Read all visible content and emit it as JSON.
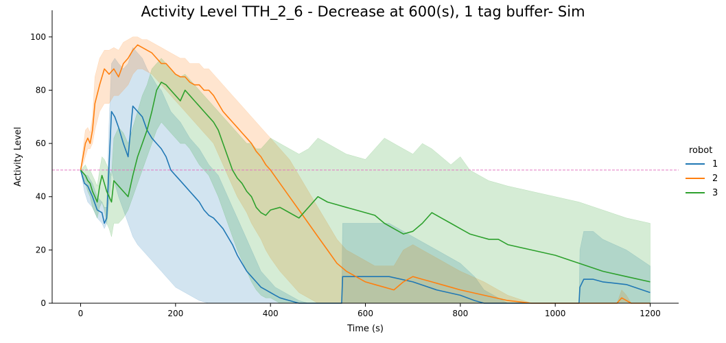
{
  "chart_data": {
    "type": "line",
    "title": "Activity Level TTH_2_6 - Decrease at 600(s), 1 tag buffer- Sim",
    "xlabel": "Time (s)",
    "ylabel": "Activity Level",
    "xlim": [
      -60,
      1260
    ],
    "ylim": [
      0,
      110
    ],
    "xticks": [
      0,
      200,
      400,
      600,
      800,
      1000,
      1200
    ],
    "yticks": [
      0,
      20,
      40,
      60,
      80,
      100
    ],
    "grid": false,
    "legend_title": "robot",
    "legend_position": "right",
    "reference_line": {
      "y": 50,
      "color": "#e377c2",
      "style": "dashed"
    },
    "series": [
      {
        "name": "1",
        "color": "#1f77b4",
        "x": [
          0,
          8,
          15,
          25,
          35,
          45,
          50,
          55,
          60,
          65,
          72,
          80,
          90,
          100,
          110,
          120,
          130,
          140,
          150,
          160,
          170,
          180,
          190,
          200,
          210,
          220,
          230,
          240,
          250,
          260,
          270,
          280,
          290,
          300,
          310,
          320,
          330,
          340,
          350,
          360,
          370,
          380,
          390,
          400,
          410,
          420,
          430,
          440,
          450,
          460,
          470,
          480,
          490,
          500,
          520,
          540,
          550,
          552,
          560,
          600,
          650,
          700,
          750,
          800,
          830,
          850,
          900,
          950,
          1000,
          1050,
          1052,
          1060,
          1080,
          1100,
          1150,
          1200
        ],
        "y": [
          50,
          45,
          44,
          40,
          35,
          34,
          30,
          32,
          52,
          72,
          70,
          66,
          60,
          55,
          74,
          72,
          70,
          65,
          62,
          60,
          58,
          55,
          50,
          48,
          46,
          44,
          42,
          40,
          38,
          35,
          33,
          32,
          30,
          28,
          25,
          22,
          18,
          15,
          12,
          10,
          8,
          6,
          5,
          4,
          3,
          2,
          1.5,
          1,
          0.5,
          0,
          0,
          0,
          0,
          0,
          0,
          0,
          0,
          10,
          10,
          10,
          10,
          8,
          5,
          3,
          1,
          0,
          0,
          0,
          0,
          0,
          6,
          9,
          9,
          8,
          7,
          4
        ],
        "lower": [
          50,
          42,
          38,
          36,
          32,
          30,
          28,
          30,
          38,
          50,
          45,
          40,
          35,
          30,
          25,
          22,
          20,
          18,
          16,
          14,
          12,
          10,
          8,
          6,
          5,
          4,
          3,
          2,
          1,
          0.5,
          0,
          0,
          0,
          0,
          0,
          0,
          0,
          0,
          0,
          0,
          0,
          0,
          0,
          0,
          0,
          0,
          0,
          0,
          0,
          0,
          0,
          0,
          0,
          0,
          0,
          0,
          0,
          0,
          0,
          0,
          0,
          0,
          0,
          0,
          0,
          0,
          0,
          0,
          0,
          0,
          0,
          0,
          0,
          0,
          0,
          0
        ],
        "upper": [
          50,
          48,
          48,
          45,
          40,
          38,
          36,
          36,
          68,
          90,
          92,
          90,
          88,
          90,
          96,
          94,
          92,
          88,
          85,
          82,
          80,
          76,
          72,
          70,
          68,
          65,
          62,
          60,
          58,
          55,
          52,
          50,
          48,
          44,
          40,
          36,
          32,
          28,
          24,
          20,
          16,
          12,
          10,
          8,
          6,
          5,
          4,
          3,
          2,
          1,
          0.5,
          0,
          0,
          0,
          0,
          0,
          0,
          30,
          30,
          30,
          30,
          25,
          20,
          15,
          10,
          5,
          0,
          0,
          0,
          0,
          20,
          27,
          27,
          24,
          20,
          14
        ]
      },
      {
        "name": "2",
        "color": "#ff7f0e",
        "x": [
          0,
          5,
          10,
          15,
          20,
          25,
          30,
          40,
          50,
          60,
          70,
          80,
          90,
          100,
          110,
          120,
          130,
          140,
          150,
          160,
          170,
          180,
          190,
          200,
          210,
          220,
          230,
          240,
          250,
          260,
          270,
          280,
          290,
          300,
          310,
          320,
          330,
          340,
          350,
          360,
          370,
          380,
          390,
          400,
          420,
          440,
          460,
          480,
          500,
          520,
          540,
          560,
          580,
          600,
          620,
          640,
          660,
          680,
          700,
          720,
          740,
          760,
          780,
          800,
          850,
          900,
          950,
          1000,
          1050,
          1100,
          1130,
          1140,
          1150,
          1160,
          1200
        ],
        "y": [
          50,
          55,
          60,
          62,
          60,
          65,
          75,
          82,
          88,
          86,
          88,
          85,
          90,
          92,
          95,
          97,
          96,
          95,
          94,
          92,
          90,
          90,
          88,
          86,
          85,
          85,
          83,
          82,
          82,
          80,
          80,
          78,
          75,
          72,
          70,
          68,
          66,
          64,
          62,
          60,
          57,
          55,
          52,
          50,
          45,
          40,
          35,
          30,
          25,
          20,
          15,
          12,
          10,
          8,
          7,
          6,
          5,
          8,
          10,
          9,
          8,
          7,
          6,
          5,
          3,
          1,
          0,
          0,
          0,
          0,
          0,
          2,
          1,
          0,
          0
        ],
        "lower": [
          50,
          52,
          55,
          58,
          58,
          60,
          65,
          72,
          75,
          75,
          78,
          78,
          80,
          82,
          86,
          88,
          88,
          87,
          86,
          84,
          82,
          80,
          78,
          76,
          74,
          72,
          70,
          68,
          66,
          64,
          62,
          60,
          56,
          52,
          48,
          44,
          40,
          37,
          34,
          30,
          27,
          24,
          20,
          17,
          12,
          8,
          4,
          2,
          0,
          0,
          0,
          0,
          0,
          0,
          0,
          0,
          0,
          0,
          0,
          0,
          0,
          0,
          0,
          0,
          0,
          0,
          0,
          0,
          0,
          0,
          0,
          0,
          0,
          0,
          0
        ],
        "upper": [
          50,
          58,
          65,
          66,
          64,
          70,
          85,
          92,
          95,
          95,
          96,
          95,
          98,
          99,
          100,
          100,
          99,
          99,
          98,
          97,
          96,
          95,
          94,
          93,
          92,
          92,
          90,
          90,
          90,
          88,
          88,
          86,
          84,
          82,
          80,
          78,
          76,
          74,
          72,
          70,
          68,
          66,
          64,
          62,
          58,
          54,
          48,
          42,
          36,
          30,
          24,
          20,
          18,
          16,
          14,
          14,
          14,
          20,
          22,
          20,
          18,
          16,
          14,
          12,
          8,
          3,
          0,
          0,
          0,
          0,
          0,
          5,
          3,
          0,
          0
        ]
      },
      {
        "name": "3",
        "color": "#2ca02c",
        "x": [
          0,
          10,
          15,
          20,
          25,
          30,
          35,
          40,
          45,
          50,
          55,
          60,
          65,
          70,
          80,
          90,
          100,
          110,
          120,
          130,
          140,
          150,
          160,
          170,
          180,
          190,
          200,
          210,
          220,
          230,
          240,
          250,
          260,
          270,
          280,
          290,
          300,
          310,
          320,
          330,
          340,
          350,
          360,
          370,
          380,
          390,
          400,
          420,
          440,
          460,
          480,
          500,
          520,
          540,
          560,
          580,
          600,
          620,
          640,
          660,
          680,
          700,
          720,
          740,
          760,
          780,
          800,
          820,
          840,
          860,
          880,
          900,
          950,
          1000,
          1050,
          1100,
          1150,
          1200
        ],
        "y": [
          50,
          48,
          46,
          45,
          42,
          40,
          38,
          44,
          48,
          45,
          42,
          40,
          38,
          46,
          44,
          42,
          40,
          48,
          55,
          60,
          65,
          72,
          80,
          83,
          82,
          80,
          78,
          76,
          80,
          78,
          76,
          74,
          72,
          70,
          68,
          65,
          60,
          55,
          50,
          47,
          45,
          42,
          40,
          36,
          34,
          33,
          35,
          36,
          34,
          32,
          36,
          40,
          38,
          37,
          36,
          35,
          34,
          33,
          30,
          28,
          26,
          27,
          30,
          34,
          32,
          30,
          28,
          26,
          25,
          24,
          24,
          22,
          20,
          18,
          15,
          12,
          10,
          8
        ],
        "lower": [
          50,
          45,
          42,
          40,
          36,
          34,
          32,
          36,
          38,
          35,
          30,
          28,
          25,
          30,
          30,
          32,
          35,
          40,
          45,
          50,
          55,
          60,
          65,
          68,
          66,
          64,
          62,
          60,
          60,
          58,
          55,
          52,
          50,
          48,
          44,
          40,
          35,
          30,
          25,
          20,
          16,
          12,
          8,
          5,
          3,
          2,
          2,
          0,
          0,
          0,
          0,
          0,
          0,
          0,
          0,
          0,
          0,
          0,
          0,
          0,
          0,
          0,
          0,
          0,
          0,
          0,
          0,
          0,
          0,
          0,
          0,
          0,
          0,
          0,
          0,
          0,
          0,
          0
        ],
        "upper": [
          50,
          52,
          50,
          50,
          48,
          46,
          44,
          50,
          55,
          54,
          52,
          50,
          48,
          62,
          66,
          64,
          60,
          66,
          72,
          78,
          82,
          88,
          90,
          92,
          90,
          88,
          86,
          85,
          86,
          84,
          82,
          80,
          78,
          76,
          74,
          72,
          70,
          68,
          66,
          64,
          62,
          60,
          60,
          58,
          58,
          60,
          62,
          60,
          58,
          56,
          58,
          62,
          60,
          58,
          56,
          55,
          54,
          58,
          62,
          60,
          58,
          56,
          60,
          58,
          55,
          52,
          55,
          50,
          48,
          46,
          45,
          44,
          42,
          40,
          38,
          35,
          32,
          30
        ]
      }
    ]
  }
}
